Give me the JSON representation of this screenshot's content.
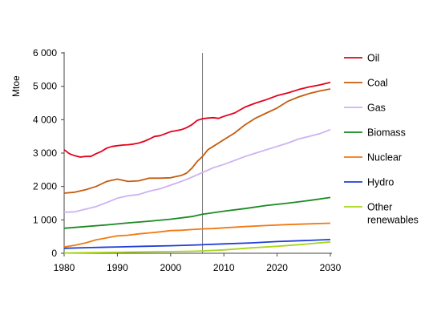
{
  "chart_data": {
    "type": "line",
    "title": "",
    "xlabel": "",
    "ylabel": "Mtoe",
    "xlim": [
      1980,
      2030
    ],
    "ylim": [
      0,
      6000
    ],
    "xticks": [
      1980,
      1990,
      2000,
      2010,
      2020,
      2030
    ],
    "yticks": [
      0,
      1000,
      2000,
      3000,
      4000,
      5000,
      6000
    ],
    "ytick_labels": [
      "0",
      "1 000",
      "2 000",
      "3 000",
      "4 000",
      "5 000",
      "6 000"
    ],
    "grid": false,
    "legend_position": "right",
    "reference_line_x": 2006,
    "series": [
      {
        "name": "Oil",
        "color": "#e3001b",
        "points": [
          [
            1980,
            3100
          ],
          [
            1981,
            2980
          ],
          [
            1982,
            2920
          ],
          [
            1983,
            2880
          ],
          [
            1984,
            2900
          ],
          [
            1985,
            2900
          ],
          [
            1986,
            2980
          ],
          [
            1987,
            3050
          ],
          [
            1988,
            3150
          ],
          [
            1989,
            3200
          ],
          [
            1990,
            3220
          ],
          [
            1991,
            3240
          ],
          [
            1992,
            3250
          ],
          [
            1993,
            3270
          ],
          [
            1994,
            3300
          ],
          [
            1995,
            3350
          ],
          [
            1996,
            3420
          ],
          [
            1997,
            3500
          ],
          [
            1998,
            3520
          ],
          [
            1999,
            3580
          ],
          [
            2000,
            3640
          ],
          [
            2001,
            3670
          ],
          [
            2002,
            3700
          ],
          [
            2003,
            3760
          ],
          [
            2004,
            3850
          ],
          [
            2005,
            3980
          ],
          [
            2006,
            4030
          ],
          [
            2007,
            4050
          ],
          [
            2008,
            4060
          ],
          [
            2009,
            4040
          ],
          [
            2010,
            4100
          ],
          [
            2012,
            4200
          ],
          [
            2014,
            4380
          ],
          [
            2016,
            4500
          ],
          [
            2018,
            4600
          ],
          [
            2020,
            4720
          ],
          [
            2022,
            4800
          ],
          [
            2024,
            4900
          ],
          [
            2026,
            4980
          ],
          [
            2028,
            5040
          ],
          [
            2030,
            5120
          ]
        ]
      },
      {
        "name": "Coal",
        "color": "#c45c0e",
        "points": [
          [
            1980,
            1800
          ],
          [
            1982,
            1830
          ],
          [
            1984,
            1900
          ],
          [
            1986,
            2000
          ],
          [
            1988,
            2150
          ],
          [
            1990,
            2220
          ],
          [
            1992,
            2150
          ],
          [
            1994,
            2170
          ],
          [
            1996,
            2250
          ],
          [
            1998,
            2250
          ],
          [
            2000,
            2260
          ],
          [
            2002,
            2330
          ],
          [
            2003,
            2400
          ],
          [
            2004,
            2550
          ],
          [
            2005,
            2750
          ],
          [
            2006,
            2900
          ],
          [
            2007,
            3100
          ],
          [
            2008,
            3200
          ],
          [
            2010,
            3400
          ],
          [
            2012,
            3600
          ],
          [
            2014,
            3850
          ],
          [
            2016,
            4050
          ],
          [
            2018,
            4200
          ],
          [
            2020,
            4350
          ],
          [
            2022,
            4550
          ],
          [
            2024,
            4680
          ],
          [
            2026,
            4780
          ],
          [
            2028,
            4860
          ],
          [
            2030,
            4920
          ]
        ]
      },
      {
        "name": "Gas",
        "color": "#cdb2f3",
        "points": [
          [
            1980,
            1230
          ],
          [
            1982,
            1240
          ],
          [
            1984,
            1320
          ],
          [
            1986,
            1400
          ],
          [
            1988,
            1520
          ],
          [
            1990,
            1650
          ],
          [
            1992,
            1720
          ],
          [
            1994,
            1760
          ],
          [
            1996,
            1860
          ],
          [
            1998,
            1930
          ],
          [
            2000,
            2040
          ],
          [
            2002,
            2150
          ],
          [
            2004,
            2280
          ],
          [
            2006,
            2420
          ],
          [
            2008,
            2560
          ],
          [
            2010,
            2660
          ],
          [
            2012,
            2780
          ],
          [
            2014,
            2900
          ],
          [
            2016,
            3000
          ],
          [
            2018,
            3100
          ],
          [
            2020,
            3200
          ],
          [
            2022,
            3300
          ],
          [
            2024,
            3420
          ],
          [
            2026,
            3500
          ],
          [
            2028,
            3580
          ],
          [
            2030,
            3700
          ]
        ]
      },
      {
        "name": "Biomass",
        "color": "#1a8a22",
        "points": [
          [
            1980,
            750
          ],
          [
            1984,
            800
          ],
          [
            1988,
            850
          ],
          [
            1992,
            910
          ],
          [
            1996,
            960
          ],
          [
            2000,
            1020
          ],
          [
            2004,
            1100
          ],
          [
            2006,
            1170
          ],
          [
            2010,
            1260
          ],
          [
            2014,
            1340
          ],
          [
            2018,
            1430
          ],
          [
            2022,
            1500
          ],
          [
            2026,
            1580
          ],
          [
            2030,
            1670
          ]
        ]
      },
      {
        "name": "Nuclear",
        "color": "#f07a12",
        "points": [
          [
            1980,
            190
          ],
          [
            1982,
            240
          ],
          [
            1984,
            310
          ],
          [
            1986,
            400
          ],
          [
            1988,
            460
          ],
          [
            1990,
            520
          ],
          [
            1992,
            540
          ],
          [
            1994,
            580
          ],
          [
            1996,
            610
          ],
          [
            1998,
            640
          ],
          [
            2000,
            680
          ],
          [
            2002,
            690
          ],
          [
            2004,
            710
          ],
          [
            2006,
            730
          ],
          [
            2008,
            740
          ],
          [
            2010,
            760
          ],
          [
            2014,
            800
          ],
          [
            2018,
            830
          ],
          [
            2022,
            860
          ],
          [
            2026,
            880
          ],
          [
            2030,
            900
          ]
        ]
      },
      {
        "name": "Hydro",
        "color": "#1f3fd6",
        "points": [
          [
            1980,
            150
          ],
          [
            1985,
            170
          ],
          [
            1990,
            190
          ],
          [
            1995,
            210
          ],
          [
            2000,
            225
          ],
          [
            2005,
            250
          ],
          [
            2010,
            280
          ],
          [
            2015,
            310
          ],
          [
            2020,
            350
          ],
          [
            2025,
            380
          ],
          [
            2030,
            410
          ]
        ]
      },
      {
        "name": "Other renewables",
        "color": "#a8d61c",
        "points": [
          [
            1980,
            10
          ],
          [
            1985,
            20
          ],
          [
            1990,
            30
          ],
          [
            1995,
            40
          ],
          [
            2000,
            50
          ],
          [
            2004,
            60
          ],
          [
            2006,
            70
          ],
          [
            2010,
            100
          ],
          [
            2015,
            160
          ],
          [
            2020,
            210
          ],
          [
            2025,
            270
          ],
          [
            2030,
            340
          ]
        ]
      }
    ]
  }
}
